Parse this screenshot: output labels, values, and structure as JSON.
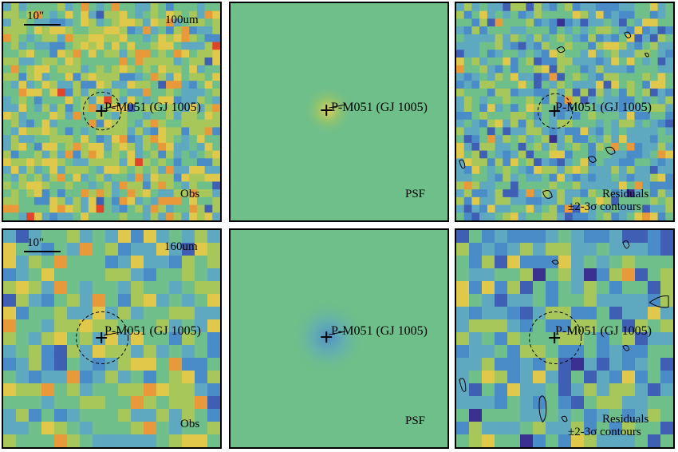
{
  "target_label": "P-M051 (GJ 1005)",
  "scale_label": "10\"",
  "panel_labels": {
    "obs": "Obs",
    "psf": "PSF",
    "residuals_line1": "Residuals",
    "residuals_line2": "±2-3σ contours"
  },
  "rows": [
    {
      "band": "100um"
    },
    {
      "band": "160um"
    }
  ],
  "colors": {
    "background": "#6fbf8a",
    "palette": [
      "#3b2f8f",
      "#3f5fb5",
      "#4a8cc8",
      "#5ea8c0",
      "#6fbf8a",
      "#a8c75a",
      "#e0c94a",
      "#e89a3a",
      "#e0452c"
    ]
  }
}
